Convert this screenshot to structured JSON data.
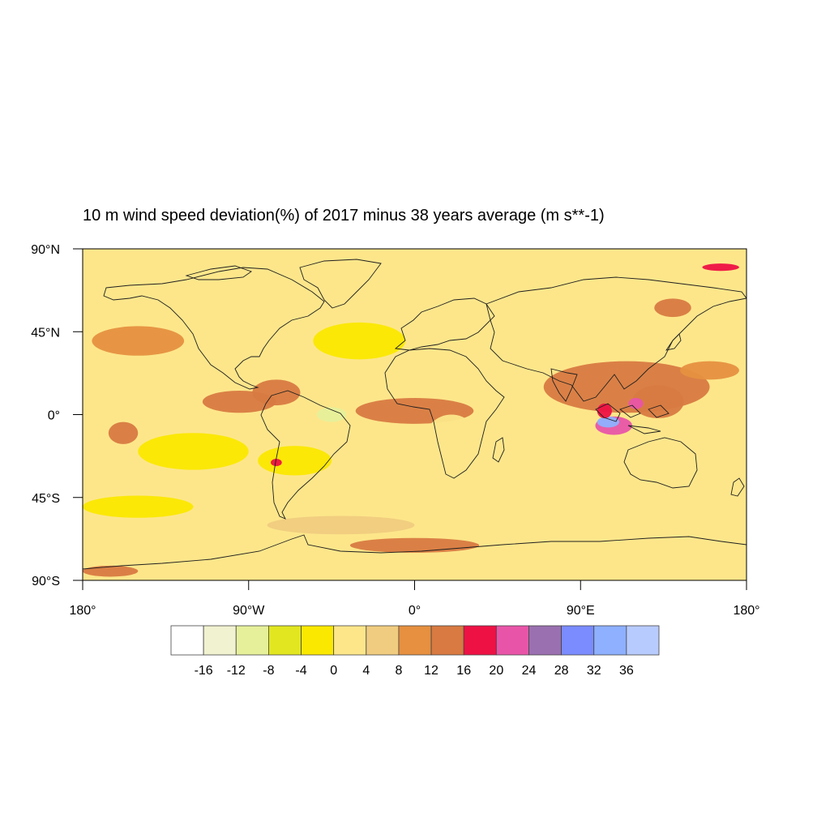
{
  "title": "10 m wind speed deviation(%) of 2017 minus 38 years average  (m s**-1)",
  "map": {
    "projection": "cylindrical-equidistant",
    "lon_range": [
      -180,
      180
    ],
    "lat_range": [
      -90,
      90
    ],
    "lat_ticks": [
      {
        "value": 90,
        "label": "90°N"
      },
      {
        "value": 45,
        "label": "45°N"
      },
      {
        "value": 0,
        "label": "0°"
      },
      {
        "value": -45,
        "label": "45°S"
      },
      {
        "value": -90,
        "label": "90°S"
      }
    ],
    "lon_ticks": [
      {
        "value": -180,
        "label": "180°"
      },
      {
        "value": -90,
        "label": "90°W"
      },
      {
        "value": 0,
        "label": "0°"
      },
      {
        "value": 90,
        "label": "90°E"
      },
      {
        "value": 180,
        "label": "180°"
      }
    ],
    "background_color": "#fde68a",
    "coastline_color": "#1f1f1f",
    "anomaly_regions": [
      {
        "lon": 115,
        "lat": 15,
        "rx": 45,
        "ry": 14,
        "level": 12
      },
      {
        "lon": 0,
        "lat": 2,
        "rx": 32,
        "ry": 7,
        "level": 12
      },
      {
        "lon": -95,
        "lat": 7,
        "rx": 20,
        "ry": 6,
        "level": 12
      },
      {
        "lon": -75,
        "lat": 12,
        "rx": 13,
        "ry": 7,
        "level": 12
      },
      {
        "lon": 108,
        "lat": -6,
        "rx": 10,
        "ry": 5,
        "level": 20
      },
      {
        "lon": 132,
        "lat": 7,
        "rx": 14,
        "ry": 9,
        "level": 12
      },
      {
        "lon": -158,
        "lat": -10,
        "rx": 8,
        "ry": 6,
        "level": 12
      },
      {
        "lon": 0,
        "lat": -71,
        "rx": 35,
        "ry": 4,
        "level": 12
      },
      {
        "lon": -165,
        "lat": -85,
        "rx": 15,
        "ry": 3,
        "level": 12
      },
      {
        "lon": 160,
        "lat": 24,
        "rx": 16,
        "ry": 5,
        "level": 8
      },
      {
        "lon": 140,
        "lat": 58,
        "rx": 10,
        "ry": 5,
        "level": 12
      },
      {
        "lon": -65,
        "lat": -25,
        "rx": 20,
        "ry": 8,
        "level": -4
      },
      {
        "lon": -120,
        "lat": -20,
        "rx": 30,
        "ry": 10,
        "level": -4
      },
      {
        "lon": 60,
        "lat": -30,
        "rx": 35,
        "ry": 8,
        "level": 0
      },
      {
        "lon": -30,
        "lat": 40,
        "rx": 25,
        "ry": 10,
        "level": -4
      },
      {
        "lon": 40,
        "lat": 55,
        "rx": 40,
        "ry": 8,
        "level": 0
      },
      {
        "lon": -150,
        "lat": -50,
        "rx": 30,
        "ry": 6,
        "level": -4
      },
      {
        "lon": 100,
        "lat": -52,
        "rx": 50,
        "ry": 6,
        "level": 0
      },
      {
        "lon": -40,
        "lat": -60,
        "rx": 40,
        "ry": 5,
        "level": 4
      },
      {
        "lon": -150,
        "lat": 40,
        "rx": 25,
        "ry": 8,
        "level": 8
      },
      {
        "lon": 20,
        "lat": -15,
        "rx": 15,
        "ry": 15,
        "level": 0
      },
      {
        "lon": -45,
        "lat": 0,
        "rx": 8,
        "ry": 4,
        "level": -12
      },
      {
        "lon": 105,
        "lat": -4,
        "rx": 6,
        "ry": 3,
        "level": 32
      },
      {
        "lon": 103,
        "lat": 2,
        "rx": 4,
        "ry": 4,
        "level": 16
      },
      {
        "lon": 120,
        "lat": 6,
        "rx": 4,
        "ry": 3,
        "level": 20
      },
      {
        "lon": 166,
        "lat": 80,
        "rx": 10,
        "ry": 2,
        "level": 16
      },
      {
        "lon": -75,
        "lat": -26,
        "rx": 3,
        "ry": 2,
        "level": 16
      }
    ]
  },
  "colorbar": {
    "colors": [
      "#ffffff",
      "#f0f2d0",
      "#e6f09a",
      "#e1e620",
      "#fbe800",
      "#fde68a",
      "#f0cc80",
      "#e69040",
      "#d87a42",
      "#ee1144",
      "#e855a8",
      "#9a70b0",
      "#7a8cff",
      "#8eb0ff",
      "#b8cbff"
    ],
    "labels": [
      "-16",
      "-12",
      "-8",
      "-4",
      "0",
      "4",
      "8",
      "12",
      "16",
      "20",
      "24",
      "28",
      "32",
      "36"
    ]
  }
}
